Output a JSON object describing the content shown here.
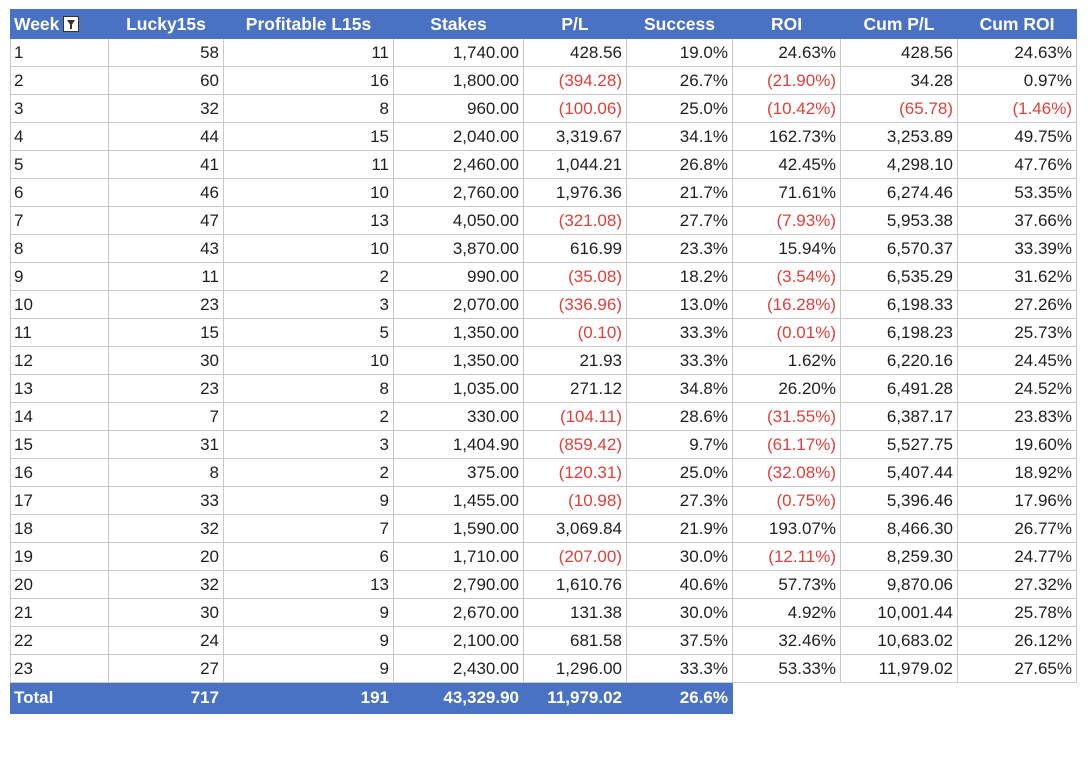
{
  "headers": {
    "week": "Week",
    "lucky15s": "Lucky15s",
    "profitable": "Profitable L15s",
    "stakes": "Stakes",
    "pl": "P/L",
    "success": "Success",
    "roi": "ROI",
    "cum_pl": "Cum P/L",
    "cum_roi": "Cum ROI"
  },
  "filter_icon": "filter-icon",
  "negative_color": "#e0403a",
  "header_color": "#4a72c4",
  "rows": [
    [
      "1",
      "58",
      "11",
      "1,740.00",
      "428.56",
      "19.0%",
      "24.63%",
      "428.56",
      "24.63%"
    ],
    [
      "2",
      "60",
      "16",
      "1,800.00",
      "(394.28)",
      "26.7%",
      "(21.90%)",
      "34.28",
      "0.97%"
    ],
    [
      "3",
      "32",
      "8",
      "960.00",
      "(100.06)",
      "25.0%",
      "(10.42%)",
      "(65.78)",
      "(1.46%)"
    ],
    [
      "4",
      "44",
      "15",
      "2,040.00",
      "3,319.67",
      "34.1%",
      "162.73%",
      "3,253.89",
      "49.75%"
    ],
    [
      "5",
      "41",
      "11",
      "2,460.00",
      "1,044.21",
      "26.8%",
      "42.45%",
      "4,298.10",
      "47.76%"
    ],
    [
      "6",
      "46",
      "10",
      "2,760.00",
      "1,976.36",
      "21.7%",
      "71.61%",
      "6,274.46",
      "53.35%"
    ],
    [
      "7",
      "47",
      "13",
      "4,050.00",
      "(321.08)",
      "27.7%",
      "(7.93%)",
      "5,953.38",
      "37.66%"
    ],
    [
      "8",
      "43",
      "10",
      "3,870.00",
      "616.99",
      "23.3%",
      "15.94%",
      "6,570.37",
      "33.39%"
    ],
    [
      "9",
      "11",
      "2",
      "990.00",
      "(35.08)",
      "18.2%",
      "(3.54%)",
      "6,535.29",
      "31.62%"
    ],
    [
      "10",
      "23",
      "3",
      "2,070.00",
      "(336.96)",
      "13.0%",
      "(16.28%)",
      "6,198.33",
      "27.26%"
    ],
    [
      "11",
      "15",
      "5",
      "1,350.00",
      "(0.10)",
      "33.3%",
      "(0.01%)",
      "6,198.23",
      "25.73%"
    ],
    [
      "12",
      "30",
      "10",
      "1,350.00",
      "21.93",
      "33.3%",
      "1.62%",
      "6,220.16",
      "24.45%"
    ],
    [
      "13",
      "23",
      "8",
      "1,035.00",
      "271.12",
      "34.8%",
      "26.20%",
      "6,491.28",
      "24.52%"
    ],
    [
      "14",
      "7",
      "2",
      "330.00",
      "(104.11)",
      "28.6%",
      "(31.55%)",
      "6,387.17",
      "23.83%"
    ],
    [
      "15",
      "31",
      "3",
      "1,404.90",
      "(859.42)",
      "9.7%",
      "(61.17%)",
      "5,527.75",
      "19.60%"
    ],
    [
      "16",
      "8",
      "2",
      "375.00",
      "(120.31)",
      "25.0%",
      "(32.08%)",
      "5,407.44",
      "18.92%"
    ],
    [
      "17",
      "33",
      "9",
      "1,455.00",
      "(10.98)",
      "27.3%",
      "(0.75%)",
      "5,396.46",
      "17.96%"
    ],
    [
      "18",
      "32",
      "7",
      "1,590.00",
      "3,069.84",
      "21.9%",
      "193.07%",
      "8,466.30",
      "26.77%"
    ],
    [
      "19",
      "20",
      "6",
      "1,710.00",
      "(207.00)",
      "30.0%",
      "(12.11%)",
      "8,259.30",
      "24.77%"
    ],
    [
      "20",
      "32",
      "13",
      "2,790.00",
      "1,610.76",
      "40.6%",
      "57.73%",
      "9,870.06",
      "27.32%"
    ],
    [
      "21",
      "30",
      "9",
      "2,670.00",
      "131.38",
      "30.0%",
      "4.92%",
      "10,001.44",
      "25.78%"
    ],
    [
      "22",
      "24",
      "9",
      "2,100.00",
      "681.58",
      "37.5%",
      "32.46%",
      "10,683.02",
      "26.12%"
    ],
    [
      "23",
      "27",
      "9",
      "2,430.00",
      "1,296.00",
      "33.3%",
      "53.33%",
      "11,979.02",
      "27.65%"
    ]
  ],
  "total": {
    "label": "Total",
    "lucky15s": "717",
    "profitable": "191",
    "stakes": "43,329.90",
    "pl": "11,979.02",
    "success": "26.6%"
  }
}
